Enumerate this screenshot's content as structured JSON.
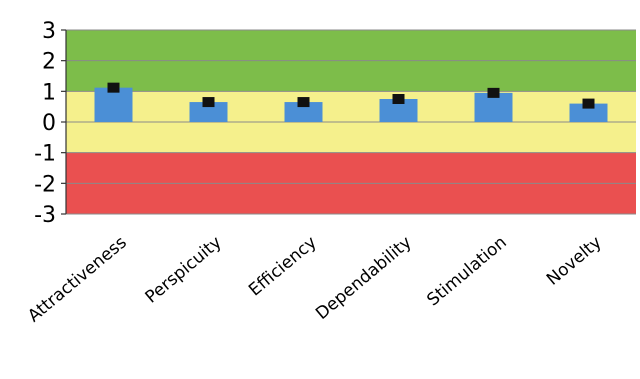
{
  "chart_data": {
    "type": "bar",
    "title": "",
    "xlabel": "",
    "ylabel": "",
    "ylim": [
      -3,
      3
    ],
    "yticks": [
      3,
      2,
      1,
      0,
      -1,
      -2,
      -3
    ],
    "ytick_labels": [
      "3",
      "2",
      "1",
      "0",
      "-1",
      "-2",
      "-3"
    ],
    "grid": true,
    "bands": [
      {
        "from": 1,
        "to": 3,
        "color": "#7dbd4a"
      },
      {
        "from": -1,
        "to": 1,
        "color": "#f5f08c"
      },
      {
        "from": -3,
        "to": -1,
        "color": "#ea5050"
      }
    ],
    "categories": [
      "Attractiveness",
      "Perspicuity",
      "Efficiency",
      "Dependability",
      "Stimulation",
      "Novelty"
    ],
    "values": [
      1.12,
      0.65,
      0.65,
      0.75,
      0.95,
      0.6
    ],
    "error": [
      0.07,
      0.08,
      0.07,
      0.07,
      0.12,
      0.07
    ],
    "bar_color": "#4b8fd6",
    "error_color": "#111111",
    "legend": "none"
  }
}
